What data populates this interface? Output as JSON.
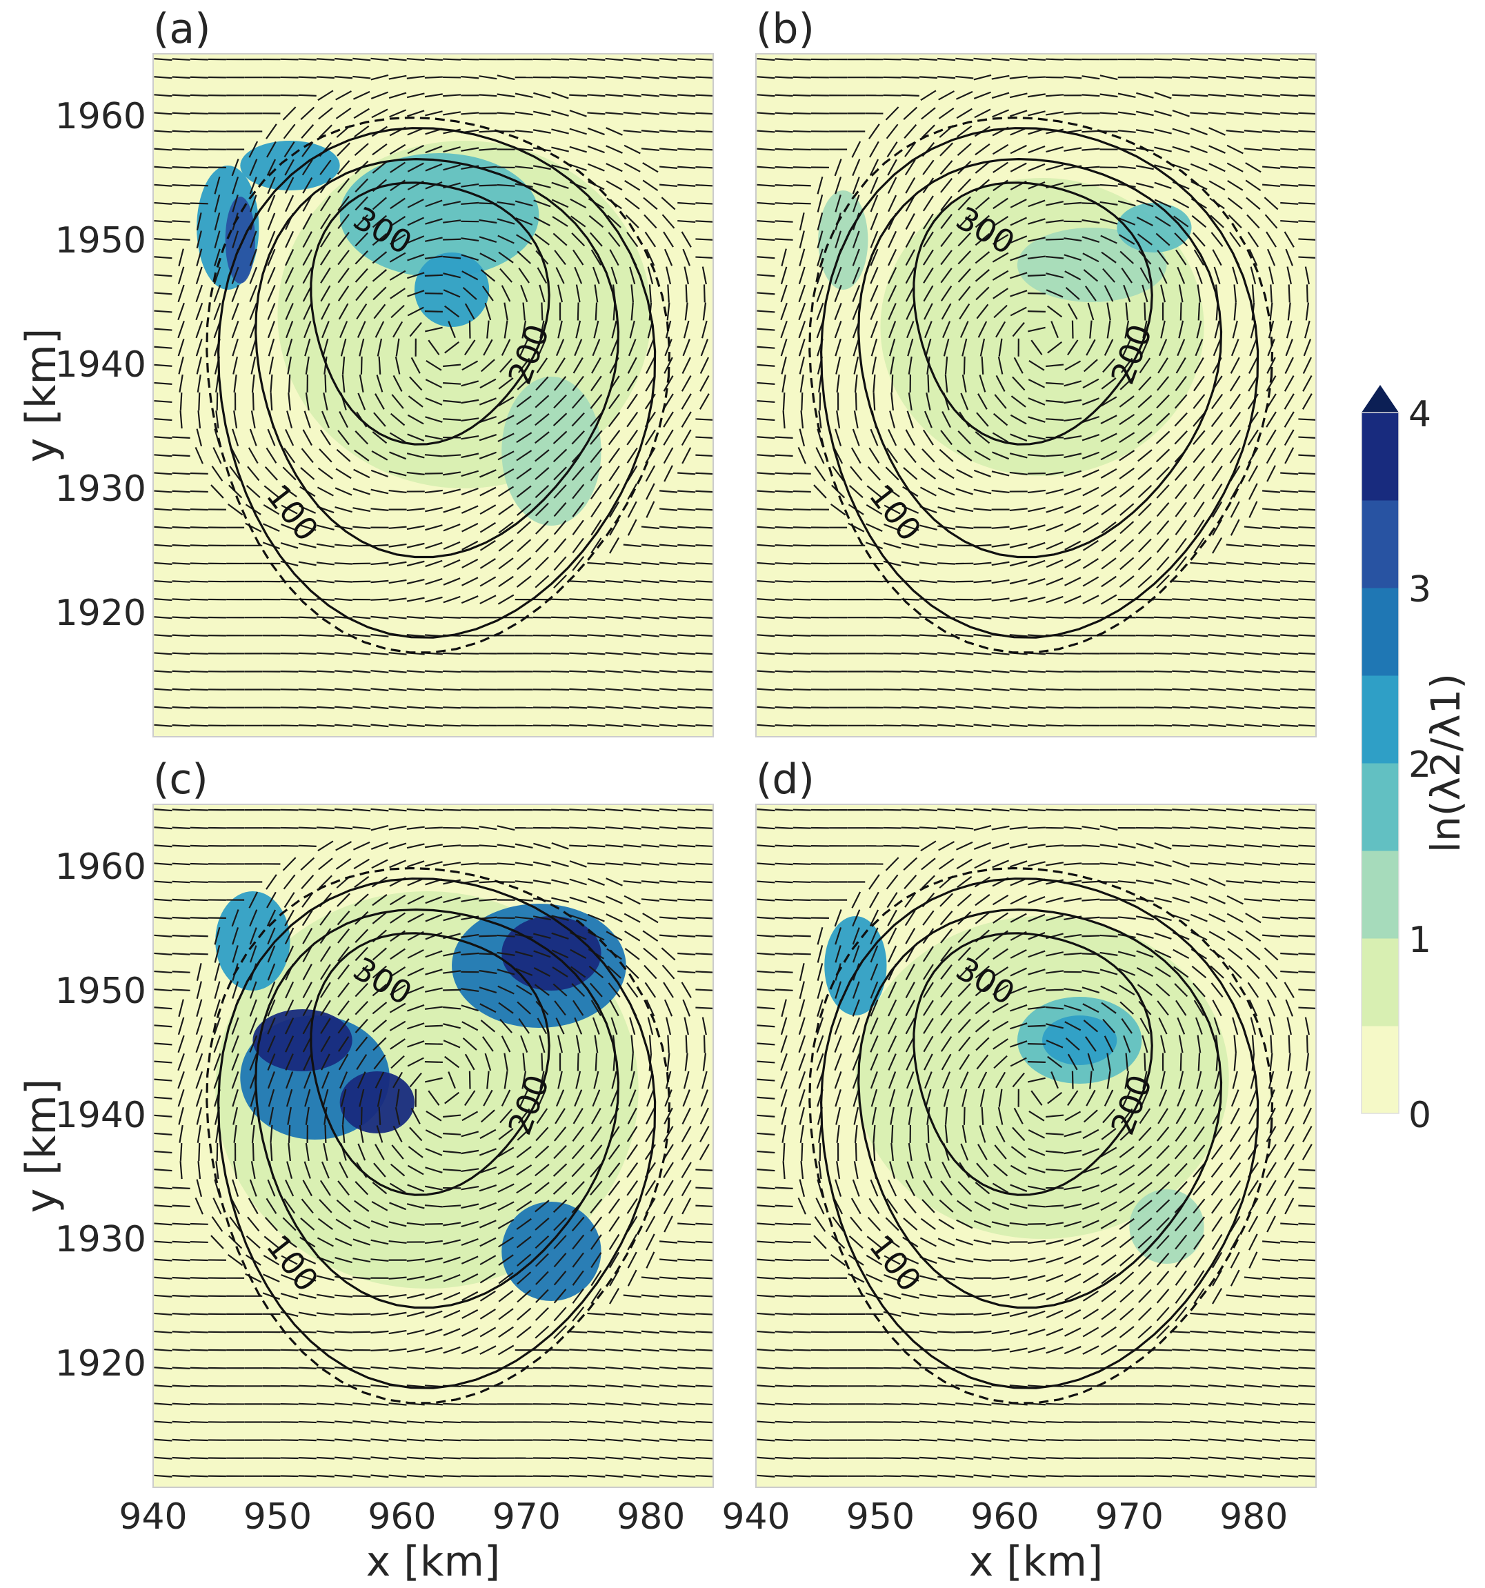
{
  "chart_data": {
    "type": "contourf",
    "x_range": [
      940,
      985
    ],
    "y_range": [
      1910,
      1965
    ],
    "xticks": [
      940,
      950,
      960,
      970,
      980
    ],
    "yticks": [
      1920,
      1930,
      1940,
      1950,
      1960
    ],
    "xlabel": "x [km]",
    "ylabel": "y [km]",
    "colorbar": {
      "label": "ln(λ2/λ1)",
      "ticks": [
        0,
        1,
        2,
        3,
        4
      ],
      "levels": [
        0,
        0.5,
        1,
        1.5,
        2,
        2.5,
        3,
        3.5,
        4
      ],
      "colors": [
        "#f5f9c7",
        "#d8efb2",
        "#a6dbbb",
        "#62c0c2",
        "#2f9fc6",
        "#1f77b4",
        "#2853a2",
        "#182b7e",
        "#0c1f55"
      ],
      "extend": "max"
    },
    "contour_levels": [
      100,
      200,
      300
    ],
    "contour_labels": [
      "100",
      "200",
      "300"
    ],
    "panels": [
      {
        "label": "(a)",
        "blobs": [
          {
            "x": 965,
            "y": 1944,
            "rx": 15,
            "ry": 14,
            "level": 1
          },
          {
            "x": 963,
            "y": 1952,
            "rx": 8,
            "ry": 5,
            "level": 3
          },
          {
            "x": 951,
            "y": 1956,
            "rx": 4,
            "ry": 2,
            "level": 4
          },
          {
            "x": 946,
            "y": 1951,
            "rx": 2.5,
            "ry": 5,
            "level": 4
          },
          {
            "x": 947,
            "y": 1950,
            "rx": 1.2,
            "ry": 3.5,
            "level": 6
          },
          {
            "x": 964,
            "y": 1946,
            "rx": 3,
            "ry": 3,
            "level": 4
          },
          {
            "x": 972,
            "y": 1933,
            "rx": 4,
            "ry": 6,
            "level": 2
          }
        ]
      },
      {
        "label": "(b)",
        "blobs": [
          {
            "x": 963,
            "y": 1943,
            "rx": 13,
            "ry": 12,
            "level": 1
          },
          {
            "x": 967,
            "y": 1948,
            "rx": 6,
            "ry": 3,
            "level": 2
          },
          {
            "x": 972,
            "y": 1951,
            "rx": 3,
            "ry": 2,
            "level": 3
          },
          {
            "x": 947,
            "y": 1950,
            "rx": 2,
            "ry": 4,
            "level": 2
          }
        ]
      },
      {
        "label": "(c)",
        "blobs": [
          {
            "x": 962,
            "y": 1942,
            "rx": 17,
            "ry": 16,
            "level": 1
          },
          {
            "x": 953,
            "y": 1943,
            "rx": 6,
            "ry": 5,
            "level": 5
          },
          {
            "x": 952,
            "y": 1946,
            "rx": 4,
            "ry": 2.5,
            "level": 7
          },
          {
            "x": 958,
            "y": 1941,
            "rx": 3,
            "ry": 2.5,
            "level": 7
          },
          {
            "x": 971,
            "y": 1952,
            "rx": 7,
            "ry": 5,
            "level": 5
          },
          {
            "x": 972,
            "y": 1953,
            "rx": 4,
            "ry": 3,
            "level": 7
          },
          {
            "x": 972,
            "y": 1929,
            "rx": 4,
            "ry": 4,
            "level": 5
          },
          {
            "x": 948,
            "y": 1954,
            "rx": 3,
            "ry": 4,
            "level": 4
          }
        ]
      },
      {
        "label": "(d)",
        "blobs": [
          {
            "x": 963,
            "y": 1943,
            "rx": 15,
            "ry": 13,
            "level": 1
          },
          {
            "x": 966,
            "y": 1946,
            "rx": 5,
            "ry": 3.5,
            "level": 3
          },
          {
            "x": 966,
            "y": 1946,
            "rx": 3,
            "ry": 2,
            "level": 4
          },
          {
            "x": 948,
            "y": 1952,
            "rx": 2.5,
            "ry": 4,
            "level": 4
          },
          {
            "x": 973,
            "y": 1931,
            "rx": 3,
            "ry": 3,
            "level": 2
          }
        ]
      }
    ]
  }
}
